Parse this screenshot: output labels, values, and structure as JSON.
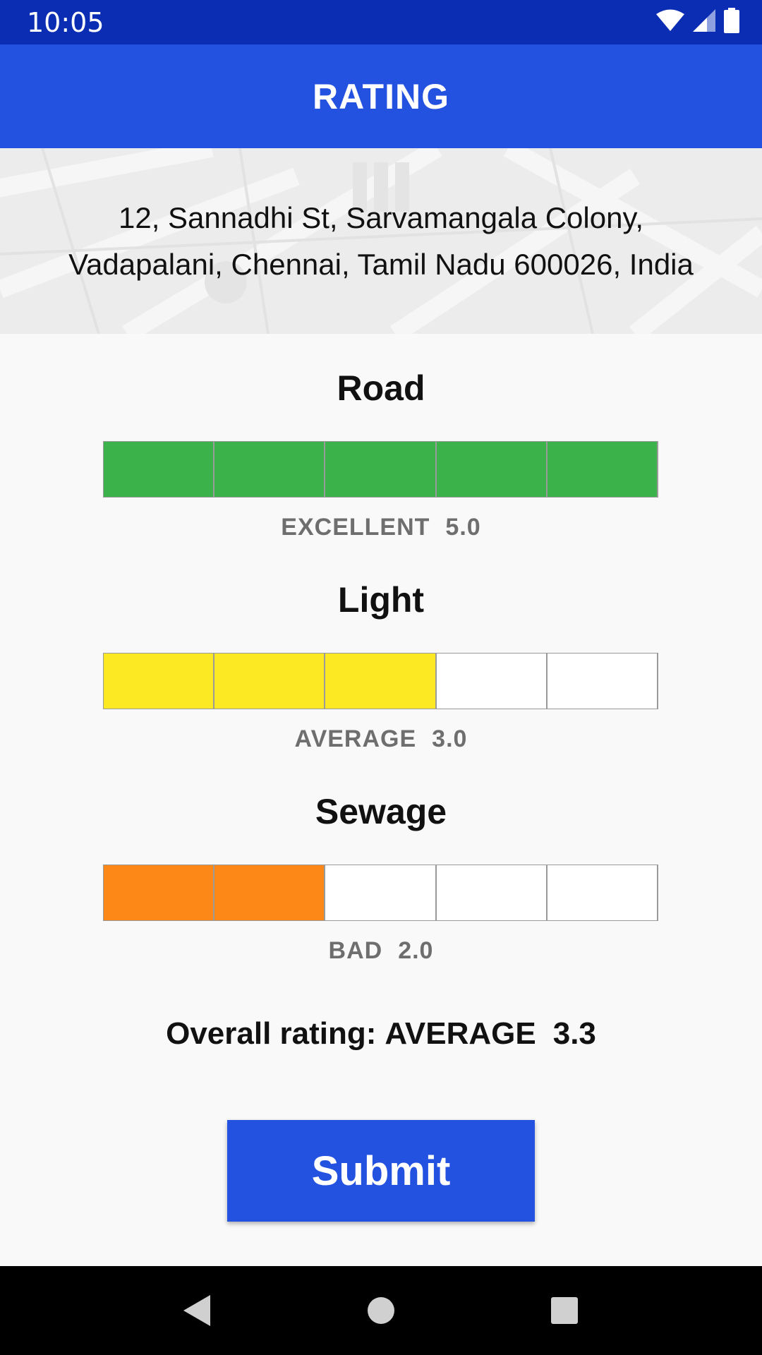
{
  "status_bar": {
    "time": "10:05",
    "icons": [
      "wifi-icon",
      "signal-icon",
      "battery-icon"
    ]
  },
  "app_bar": {
    "title": "RATING"
  },
  "address": {
    "line1": "12, Sannadhi St, Sarvamangala Colony,",
    "line2": "Vadapalani, Chennai, Tamil Nadu 600026, India"
  },
  "categories": [
    {
      "title": "Road",
      "rating_label": "EXCELLENT",
      "score": "5.0",
      "filled": 5,
      "total": 5,
      "color": "#3bb34a"
    },
    {
      "title": "Light",
      "rating_label": "AVERAGE",
      "score": "3.0",
      "filled": 3,
      "total": 5,
      "color": "#fde923"
    },
    {
      "title": "Sewage",
      "rating_label": "BAD",
      "score": "2.0",
      "filled": 2,
      "total": 5,
      "color": "#fd8818"
    }
  ],
  "overall": {
    "prefix": "Overall rating:",
    "label": "AVERAGE",
    "score": "3.3"
  },
  "submit_label": "Submit",
  "nav": {
    "icons": [
      "back-icon",
      "home-icon",
      "recents-icon"
    ]
  },
  "colors": {
    "status_bar": "#0b2db3",
    "app_bar": "#2452e0",
    "button": "#2452e0"
  }
}
